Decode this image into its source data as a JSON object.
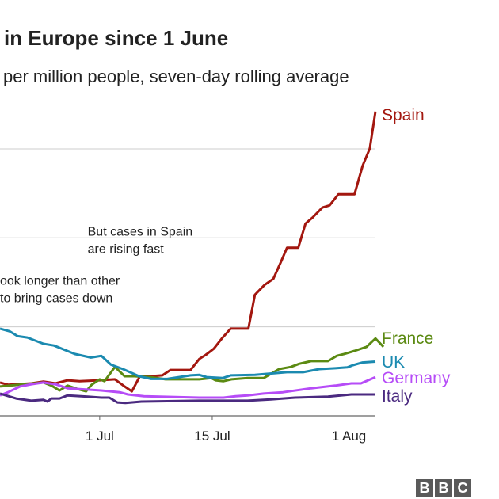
{
  "title": "in Europe since 1 June",
  "subtitle": "per million people, seven-day rolling average",
  "branding": [
    "B",
    "B",
    "C"
  ],
  "chart_data": {
    "type": "line",
    "title": "in Europe since 1 June",
    "subtitle": "per million people, seven-day rolling average",
    "xlabel": "",
    "ylabel": "",
    "x_unit": "days relative to 1 Jul",
    "xlim": [
      -12.4,
      34.3
    ],
    "ylim": [
      0,
      68
    ],
    "gridlines_y": [
      20,
      40,
      60
    ],
    "grid": true,
    "legend": "inline-right",
    "x_ticks": [
      {
        "label": "1 Jul",
        "x": 0
      },
      {
        "label": "15 Jul",
        "x": 14
      },
      {
        "label": "1 Aug",
        "x": 31
      }
    ],
    "annotations": [
      {
        "text_lines": [
          "But cases in Spain",
          "are rising fast"
        ],
        "x": -1.5,
        "y": 40.5,
        "align": "left"
      },
      {
        "text_lines": [
          "ook longer than other",
          "to bring cases down"
        ],
        "x": -12.4,
        "y": 29.5,
        "align": "left"
      }
    ],
    "series": [
      {
        "name": "Spain",
        "color": "#a3170f",
        "points": [
          [
            -12.4,
            7.5
          ],
          [
            -11.4,
            7.0
          ],
          [
            -8.5,
            7.3
          ],
          [
            -7,
            7.7
          ],
          [
            -5.5,
            7.3
          ],
          [
            -4,
            8.0
          ],
          [
            -2.5,
            7.8
          ],
          [
            0,
            8.0
          ],
          [
            1.9,
            8.2
          ],
          [
            3.1,
            6.6
          ],
          [
            4,
            5.5
          ],
          [
            5,
            8.9
          ],
          [
            6.3,
            8.9
          ],
          [
            7.8,
            9.1
          ],
          [
            8.8,
            10.3
          ],
          [
            11.3,
            10.3
          ],
          [
            12.4,
            12.8
          ],
          [
            13.2,
            13.7
          ],
          [
            14.2,
            15.1
          ],
          [
            15.2,
            17.4
          ],
          [
            16.3,
            19.6
          ],
          [
            18.5,
            19.6
          ],
          [
            19.3,
            27.2
          ],
          [
            20.5,
            29.4
          ],
          [
            21.6,
            30.8
          ],
          [
            22.5,
            34.4
          ],
          [
            23.3,
            37.8
          ],
          [
            24.7,
            37.8
          ],
          [
            25.6,
            43.2
          ],
          [
            26.5,
            44.6
          ],
          [
            27.7,
            46.8
          ],
          [
            28.6,
            47.3
          ],
          [
            29.7,
            49.8
          ],
          [
            31.7,
            49.8
          ],
          [
            32.7,
            56.2
          ],
          [
            33.6,
            60.1
          ],
          [
            34.3,
            68.4
          ]
        ]
      },
      {
        "name": "France",
        "color": "#5b8a12",
        "points": [
          [
            -12.4,
            6.6
          ],
          [
            -9.4,
            7.1
          ],
          [
            -7,
            7.5
          ],
          [
            -6,
            6.8
          ],
          [
            -5,
            5.7
          ],
          [
            -4,
            6.8
          ],
          [
            -2.7,
            6.0
          ],
          [
            -1.7,
            5.5
          ],
          [
            -1,
            7.0
          ],
          [
            0,
            8.2
          ],
          [
            0.6,
            7.8
          ],
          [
            1.9,
            11.0
          ],
          [
            3.1,
            8.9
          ],
          [
            4.3,
            8.9
          ],
          [
            6.3,
            8.7
          ],
          [
            8.2,
            8.2
          ],
          [
            12.4,
            8.2
          ],
          [
            13.9,
            8.5
          ],
          [
            14.4,
            8.0
          ],
          [
            15.4,
            7.8
          ],
          [
            16.4,
            8.2
          ],
          [
            18.4,
            8.5
          ],
          [
            20.4,
            8.5
          ],
          [
            22.3,
            10.5
          ],
          [
            23.8,
            11.0
          ],
          [
            24.8,
            11.7
          ],
          [
            26.3,
            12.3
          ],
          [
            28.4,
            12.3
          ],
          [
            29.5,
            13.5
          ],
          [
            30.4,
            13.9
          ],
          [
            31.7,
            14.6
          ],
          [
            33.2,
            15.5
          ],
          [
            35.3,
            15.5
          ],
          [
            34.3,
            17.4
          ]
        ]
      },
      {
        "name": "UK",
        "color": "#1b8ab0",
        "points": [
          [
            -12.4,
            19.6
          ],
          [
            -11.2,
            19.0
          ],
          [
            -10.2,
            17.9
          ],
          [
            -9,
            17.6
          ],
          [
            -7,
            16.2
          ],
          [
            -5.7,
            15.8
          ],
          [
            -3.1,
            13.9
          ],
          [
            -1.1,
            13.1
          ],
          [
            0.2,
            13.5
          ],
          [
            1.4,
            11.5
          ],
          [
            2.9,
            10.5
          ],
          [
            4.9,
            8.9
          ],
          [
            6.4,
            8.3
          ],
          [
            8.4,
            8.3
          ],
          [
            11.3,
            9.1
          ],
          [
            12.4,
            9.2
          ],
          [
            13.3,
            8.7
          ],
          [
            15.3,
            8.5
          ],
          [
            16.3,
            9.1
          ],
          [
            19.3,
            9.2
          ],
          [
            23.3,
            9.8
          ],
          [
            25.3,
            9.8
          ],
          [
            27.3,
            10.5
          ],
          [
            29.3,
            10.7
          ],
          [
            30.8,
            10.9
          ],
          [
            31.5,
            11.4
          ],
          [
            32.7,
            12.0
          ],
          [
            34.3,
            12.2
          ]
        ]
      },
      {
        "name": "Germany",
        "color": "#b64cf7",
        "points": [
          [
            -12.4,
            4.6
          ],
          [
            -11.4,
            5.3
          ],
          [
            -9.9,
            6.6
          ],
          [
            -8.5,
            7.1
          ],
          [
            -7,
            7.5
          ],
          [
            -5.5,
            7.1
          ],
          [
            -4,
            6.2
          ],
          [
            -2.5,
            6.0
          ],
          [
            0.2,
            5.7
          ],
          [
            2.5,
            5.3
          ],
          [
            3.5,
            4.8
          ],
          [
            5.5,
            4.4
          ],
          [
            12.4,
            4.1
          ],
          [
            15.4,
            4.1
          ],
          [
            16.9,
            4.4
          ],
          [
            18.4,
            4.6
          ],
          [
            20.4,
            5.0
          ],
          [
            22.8,
            5.3
          ],
          [
            26.3,
            6.2
          ],
          [
            29.3,
            6.8
          ],
          [
            31.3,
            7.3
          ],
          [
            32.5,
            7.3
          ],
          [
            34.3,
            8.7
          ]
        ]
      },
      {
        "name": "Italy",
        "color": "#4b2a80",
        "points": [
          [
            -12.4,
            5.0
          ],
          [
            -10.4,
            3.9
          ],
          [
            -8.5,
            3.4
          ],
          [
            -7,
            3.6
          ],
          [
            -6.5,
            3.2
          ],
          [
            -6,
            3.9
          ],
          [
            -5,
            3.9
          ],
          [
            -4,
            4.6
          ],
          [
            -1.5,
            4.3
          ],
          [
            0.2,
            4.1
          ],
          [
            1.2,
            4.1
          ],
          [
            2.2,
            3.0
          ],
          [
            3.2,
            2.9
          ],
          [
            5.2,
            3.2
          ],
          [
            12.4,
            3.4
          ],
          [
            18.4,
            3.4
          ],
          [
            21.3,
            3.7
          ],
          [
            24.3,
            4.1
          ],
          [
            28.4,
            4.3
          ],
          [
            31.3,
            4.8
          ],
          [
            34.3,
            4.8
          ]
        ]
      }
    ]
  }
}
